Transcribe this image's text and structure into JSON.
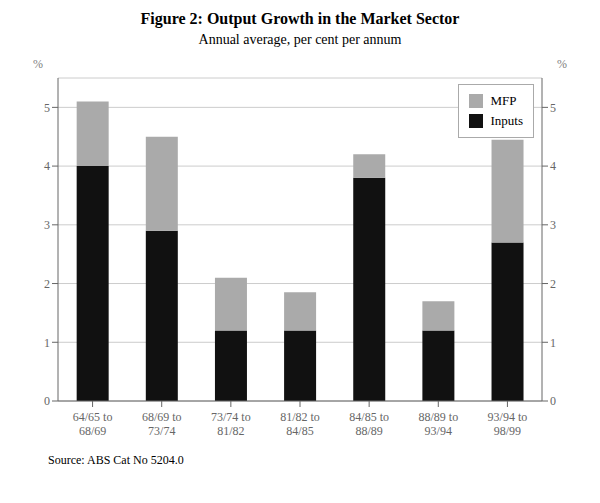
{
  "chart_data": {
    "type": "bar",
    "stacked": true,
    "title": "Figure 2:  Output Growth in the Market Sector",
    "subtitle": "Annual average, per cent per annum",
    "source": "Source: ABS Cat No 5204.0",
    "categories": [
      "64/65 to\n68/69",
      "68/69 to\n73/74",
      "73/74 to\n81/82",
      "81/82 to\n84/85",
      "84/85 to\n88/89",
      "88/89 to\n93/94",
      "93/94 to\n98/99"
    ],
    "series": [
      {
        "name": "Inputs",
        "color": "#111111",
        "values": [
          4.0,
          2.9,
          1.2,
          1.2,
          3.8,
          1.2,
          2.7
        ]
      },
      {
        "name": "MFP",
        "color": "#aaaaaa",
        "values": [
          1.1,
          1.6,
          0.9,
          0.65,
          0.4,
          0.5,
          1.75
        ]
      }
    ],
    "ylabel": "%",
    "y2label": "%",
    "ylim": [
      0,
      5.5
    ],
    "yticks": [
      0,
      1,
      2,
      3,
      4,
      5
    ],
    "y2lim": [
      0,
      5.5
    ],
    "y2ticks": [
      0,
      1,
      2,
      3,
      4,
      5
    ],
    "grid": true,
    "legend": "upper right"
  }
}
